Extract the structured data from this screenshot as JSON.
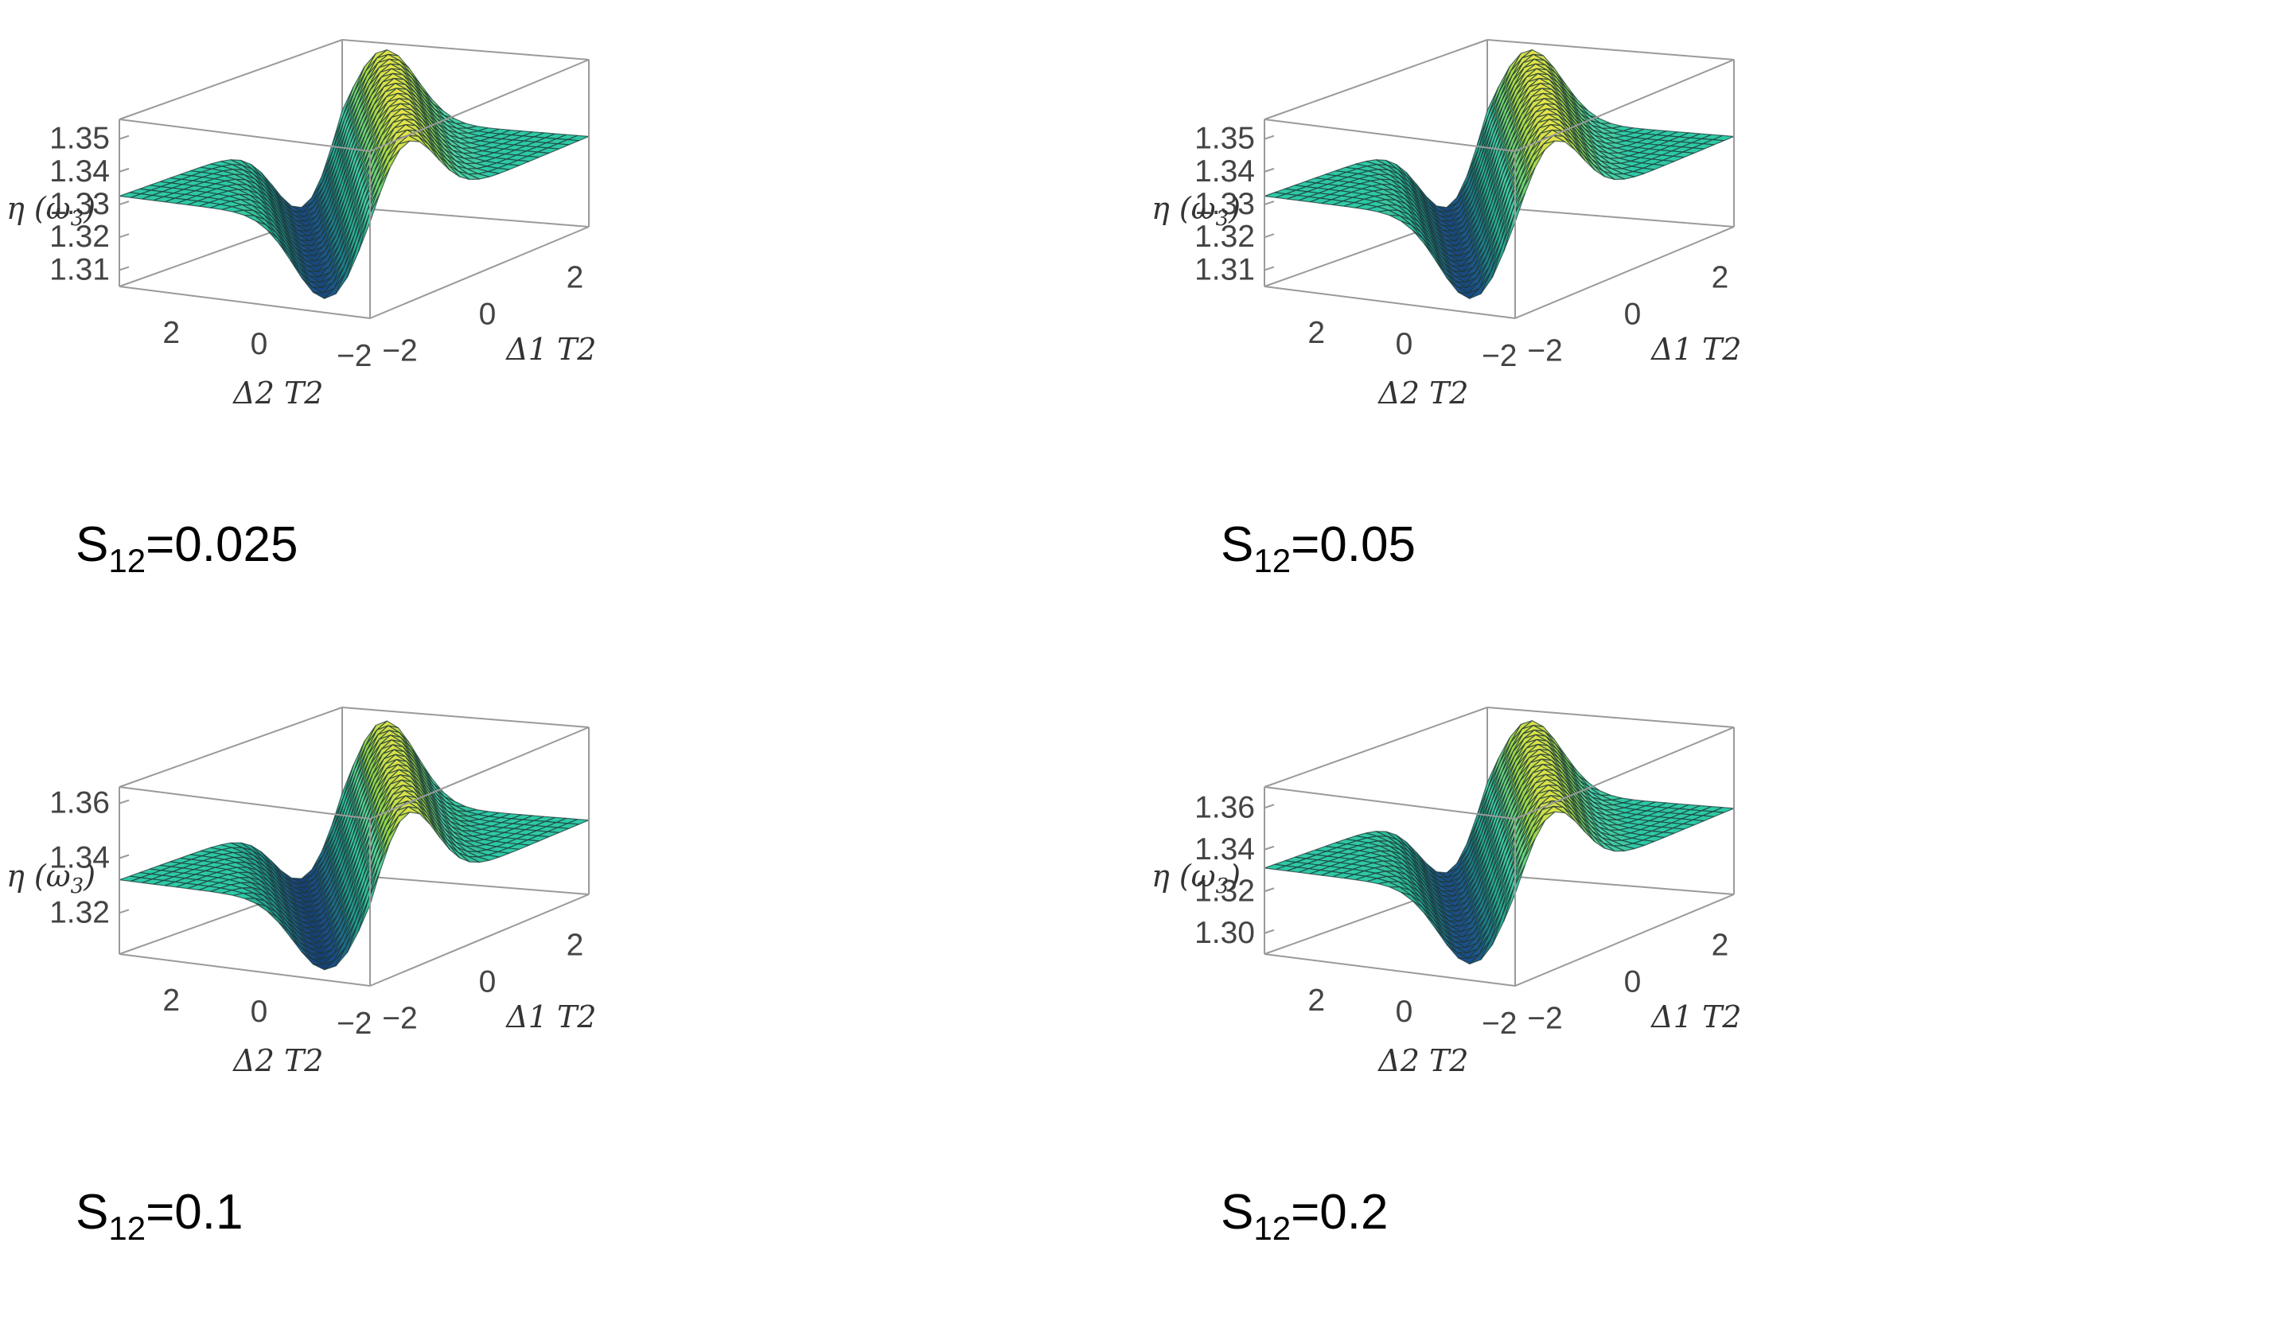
{
  "chart_data": [
    {
      "type": "surface",
      "label": "S12=0.025",
      "label_main": "S",
      "label_sub": "12",
      "label_value": "=0.025",
      "zlabel": "η (ω3)",
      "zlabel_main": "η (ω",
      "zlabel_sub": "3",
      "zlabel_end": ")",
      "xlabel": "Δ1 T2",
      "ylabel": "Δ2 T2",
      "z_ticks": [
        "1.35",
        "1.34",
        "1.33",
        "1.32",
        "1.31"
      ],
      "z_tick_values": [
        1.35,
        1.34,
        1.33,
        1.32,
        1.31
      ],
      "x_ticks": [
        "−2",
        "0",
        "2"
      ],
      "y_ticks": [
        "2",
        "0",
        "−2"
      ],
      "zlim": [
        1.305,
        1.356
      ],
      "baseline": 1.335,
      "peak_z": 1.357,
      "dip_z": 1.305,
      "grid": true,
      "colormap": [
        "#06123e",
        "#1d4f8a",
        "#1f8d8a",
        "#2fbf9a",
        "#4cd5a9",
        "#8fd44a",
        "#e8e34a"
      ],
      "surface_plane_color": "#2ec9a6",
      "mesh_color": "#1c3a37"
    },
    {
      "type": "surface",
      "label": "S12=0.05",
      "label_main": "S",
      "label_sub": "12",
      "label_value": "=0.05",
      "zlabel": "η (ω3)",
      "zlabel_main": "η (ω",
      "zlabel_sub": "3",
      "zlabel_end": ")",
      "xlabel": "Δ1 T2",
      "ylabel": "Δ2 T2",
      "z_ticks": [
        "1.35",
        "1.34",
        "1.33",
        "1.32",
        "1.31"
      ],
      "z_tick_values": [
        1.35,
        1.34,
        1.33,
        1.32,
        1.31
      ],
      "x_ticks": [
        "−2",
        "0",
        "2"
      ],
      "y_ticks": [
        "2",
        "0",
        "−2"
      ],
      "zlim": [
        1.305,
        1.356
      ],
      "baseline": 1.335,
      "peak_z": 1.357,
      "dip_z": 1.305,
      "grid": true,
      "colormap": [
        "#06123e",
        "#1d4f8a",
        "#1f8d8a",
        "#2fbf9a",
        "#4cd5a9",
        "#8fd44a",
        "#e8e34a"
      ],
      "surface_plane_color": "#2ec9a6",
      "mesh_color": "#1c3a37"
    },
    {
      "type": "surface",
      "label": "S12=0.1",
      "label_main": "S",
      "label_sub": "12",
      "label_value": "=0.1",
      "zlabel": "η (ω3)",
      "zlabel_main": "η (ω",
      "zlabel_sub": "3",
      "zlabel_end": ")",
      "xlabel": "Δ1 T2",
      "ylabel": "Δ2 T2",
      "z_ticks": [
        "1.36",
        "1.34",
        "1.32"
      ],
      "z_tick_values": [
        1.36,
        1.34,
        1.32
      ],
      "x_ticks": [
        "−2",
        "0",
        "2"
      ],
      "y_ticks": [
        "2",
        "0",
        "−2"
      ],
      "zlim": [
        1.305,
        1.366
      ],
      "baseline": 1.335,
      "peak_z": 1.366,
      "dip_z": 1.305,
      "grid": true,
      "colormap": [
        "#06123e",
        "#1d4f8a",
        "#1f8d8a",
        "#2fbf9a",
        "#4cd5a9",
        "#8fd44a",
        "#e8e34a"
      ],
      "surface_plane_color": "#2ec9a6",
      "mesh_color": "#1c3a37"
    },
    {
      "type": "surface",
      "label": "S12=0.2",
      "label_main": "S",
      "label_sub": "12",
      "label_value": "=0.2",
      "zlabel": "η (ω3)",
      "zlabel_main": "η (ω",
      "zlabel_sub": "3",
      "zlabel_end": ")",
      "xlabel": "Δ1 T2",
      "ylabel": "Δ2 T2",
      "z_ticks": [
        "1.36",
        "1.34",
        "1.32",
        "1.30"
      ],
      "z_tick_values": [
        1.36,
        1.34,
        1.32,
        1.3
      ],
      "x_ticks": [
        "−2",
        "0",
        "2"
      ],
      "y_ticks": [
        "2",
        "0",
        "−2"
      ],
      "zlim": [
        1.29,
        1.37
      ],
      "baseline": 1.335,
      "peak_z": 1.37,
      "dip_z": 1.292,
      "grid": true,
      "colormap": [
        "#06123e",
        "#1d4f8a",
        "#1f8d8a",
        "#2fbf9a",
        "#4cd5a9",
        "#8fd44a",
        "#e8e34a"
      ],
      "surface_plane_color": "#2ec9a6",
      "mesh_color": "#1c3a37"
    }
  ]
}
